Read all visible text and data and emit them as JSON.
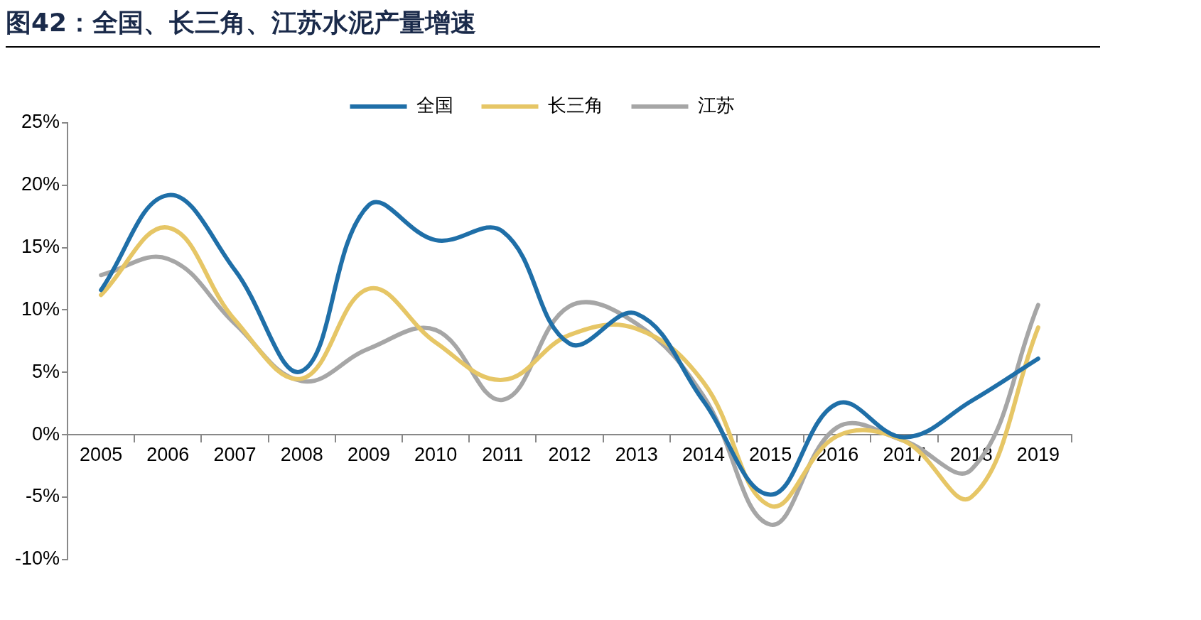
{
  "chart_data": {
    "type": "line",
    "title": "图42：全国、长三角、江苏水泥产量增速",
    "categories": [
      "2005",
      "2006",
      "2007",
      "2008",
      "2009",
      "2010",
      "2011",
      "2012",
      "2013",
      "2014",
      "2015",
      "2016",
      "2017",
      "2018",
      "2019"
    ],
    "series": [
      {
        "name": "全国",
        "color": "#1f6fa8",
        "values": [
          11.6,
          19.2,
          13.2,
          5.1,
          18.4,
          15.6,
          16.3,
          7.3,
          9.7,
          2.7,
          -4.8,
          2.5,
          -0.2,
          2.7,
          6.1
        ]
      },
      {
        "name": "长三角",
        "color": "#e6c666",
        "values": [
          11.2,
          16.6,
          9.2,
          4.5,
          11.7,
          7.4,
          4.4,
          8.0,
          8.5,
          4.2,
          -5.7,
          -0.1,
          -0.5,
          -5.0,
          8.6
        ]
      },
      {
        "name": "江苏",
        "color": "#a6a6a6",
        "values": [
          12.8,
          14.1,
          8.9,
          4.3,
          6.9,
          8.4,
          2.8,
          10.3,
          8.9,
          3.1,
          -7.2,
          0.6,
          -0.5,
          -2.8,
          10.4
        ]
      }
    ],
    "ylim": [
      -10,
      25
    ],
    "yticks": [
      {
        "value": -10,
        "label": "-10%"
      },
      {
        "value": -5,
        "label": "-5%"
      },
      {
        "value": 0,
        "label": "0%"
      },
      {
        "value": 5,
        "label": "5%"
      },
      {
        "value": 10,
        "label": "10%"
      },
      {
        "value": 15,
        "label": "15%"
      },
      {
        "value": 20,
        "label": "20%"
      },
      {
        "value": 25,
        "label": "25%"
      }
    ],
    "grid": false,
    "legend": "top",
    "marker": "none",
    "line_style": "solid"
  }
}
